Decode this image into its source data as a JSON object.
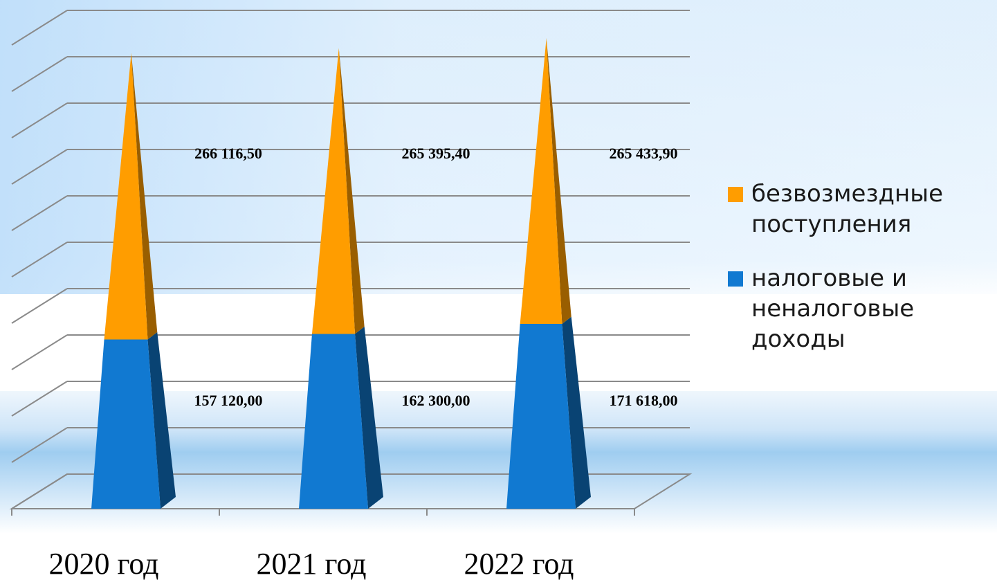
{
  "chart_data": {
    "type": "bar",
    "subtype": "stacked-3d-pyramid",
    "categories": [
      "2020 год",
      "2021 год",
      "2022 год"
    ],
    "series": [
      {
        "name": "налоговые и\nненалоговые\nдоходы",
        "color": "#1179d1",
        "values": [
          157120.0,
          162300.0,
          171618.0
        ],
        "labels": [
          "157 120,00",
          "162 300,00",
          "171 618,00"
        ]
      },
      {
        "name": "безвозмездные\nпоступления",
        "color": "#ff9d00",
        "values": [
          266116.5,
          265395.4,
          265433.9
        ],
        "labels": [
          "266 116,50",
          "265 395,40",
          "265 433,90"
        ]
      }
    ],
    "ylim": [
      0,
      500000
    ],
    "grid": true,
    "legend": "right",
    "title": "",
    "xlabel": "",
    "ylabel": ""
  }
}
